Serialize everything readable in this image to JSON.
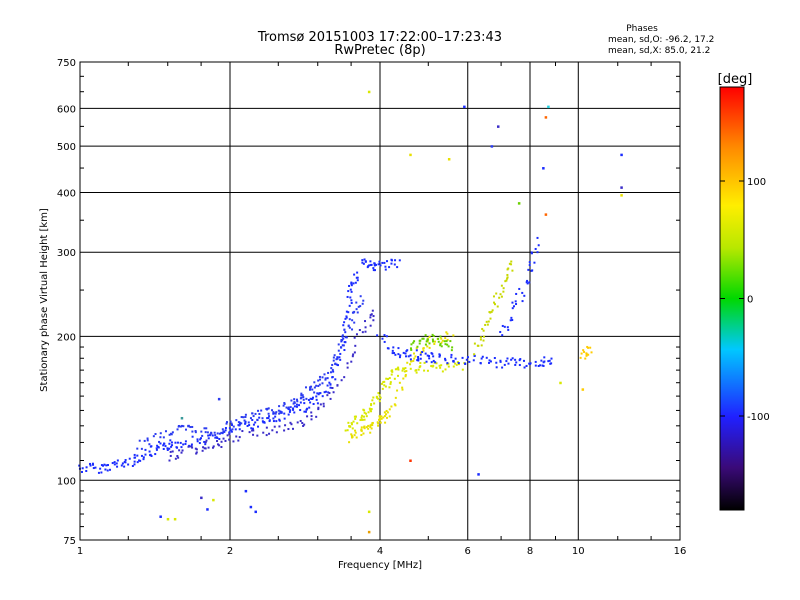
{
  "chart_data": {
    "type": "scatter",
    "title": "Tromsø 20151003 17:22:00–17:23:43",
    "subtitle": "RwPretec (8p)",
    "stats": {
      "header": "Phases",
      "line1": "mean, sd,O:  -96.2, 17.2",
      "line2": "mean, sd,X:   85.0, 21.2"
    },
    "xlabel": "Frequency [MHz]",
    "ylabel": "Stationary phase Virtual Height [km]",
    "x_scale": "log",
    "y_scale": "log",
    "xlim": [
      1,
      16
    ],
    "ylim": [
      75,
      750
    ],
    "x_ticks": [
      1,
      2,
      4,
      6,
      8,
      10,
      16
    ],
    "x_tick_labels": [
      "1",
      "2",
      "4",
      "6",
      "8",
      "10",
      "16"
    ],
    "y_ticks": [
      75,
      100,
      200,
      300,
      400,
      500,
      600,
      750
    ],
    "y_tick_labels": [
      "75",
      "100",
      "200",
      "300",
      "400",
      "500",
      "600",
      "750"
    ],
    "grid": true,
    "colorbar": {
      "label": "[deg]",
      "range": [
        -180,
        180
      ],
      "ticks": [
        100,
        0,
        -100
      ],
      "tick_labels": [
        "100",
        "0",
        "-100"
      ]
    },
    "series": [
      {
        "traces": [
          {
            "color": "#1a2cff",
            "phase": -100,
            "points": [
              [
                1.0,
                106
              ],
              [
                1.05,
                106
              ],
              [
                1.1,
                106
              ],
              [
                1.15,
                107
              ],
              [
                1.2,
                108
              ],
              [
                1.25,
                109
              ],
              [
                1.3,
                111
              ],
              [
                1.35,
                113
              ],
              [
                1.4,
                115
              ],
              [
                1.45,
                116
              ],
              [
                1.5,
                118
              ],
              [
                1.55,
                119
              ],
              [
                1.6,
                120
              ],
              [
                1.7,
                121
              ],
              [
                1.8,
                122
              ],
              [
                1.9,
                124
              ],
              [
                2.0,
                127
              ],
              [
                2.1,
                129
              ],
              [
                2.2,
                131
              ],
              [
                2.3,
                133
              ],
              [
                2.4,
                134
              ],
              [
                2.5,
                136
              ],
              [
                2.6,
                138
              ],
              [
                2.7,
                140
              ],
              [
                2.8,
                142
              ],
              [
                2.9,
                145
              ],
              [
                3.0,
                148
              ],
              [
                3.1,
                153
              ],
              [
                3.2,
                160
              ],
              [
                3.3,
                175
              ],
              [
                3.35,
                190
              ],
              [
                3.4,
                205
              ],
              [
                3.45,
                225
              ],
              [
                3.5,
                245
              ],
              [
                3.55,
                260
              ],
              [
                3.6,
                270
              ]
            ]
          },
          {
            "color": "#2c3cf0",
            "phase": -95,
            "points": [
              [
                1.3,
                118
              ],
              [
                1.4,
                122
              ],
              [
                1.5,
                126
              ],
              [
                1.6,
                128
              ],
              [
                1.7,
                127
              ],
              [
                1.8,
                126
              ],
              [
                1.9,
                127
              ],
              [
                2.0,
                130
              ],
              [
                2.1,
                133
              ],
              [
                2.2,
                135
              ],
              [
                2.3,
                137
              ],
              [
                2.4,
                139
              ],
              [
                2.5,
                141
              ],
              [
                2.6,
                143
              ],
              [
                2.7,
                146
              ],
              [
                2.8,
                150
              ],
              [
                2.9,
                154
              ],
              [
                3.0,
                158
              ],
              [
                3.1,
                164
              ],
              [
                3.2,
                172
              ],
              [
                3.3,
                185
              ],
              [
                3.4,
                200
              ],
              [
                3.5,
                215
              ],
              [
                3.6,
                230
              ],
              [
                3.7,
                245
              ]
            ]
          },
          {
            "color": "#3a2cc8",
            "phase": -110,
            "points": [
              [
                1.5,
                112
              ],
              [
                1.6,
                114
              ],
              [
                1.7,
                116
              ],
              [
                1.8,
                118
              ],
              [
                1.9,
                120
              ],
              [
                2.0,
                122
              ],
              [
                2.2,
                125
              ],
              [
                2.4,
                127
              ],
              [
                2.6,
                129
              ],
              [
                2.8,
                132
              ],
              [
                3.0,
                138
              ],
              [
                3.2,
                150
              ],
              [
                3.4,
                170
              ],
              [
                3.6,
                195
              ],
              [
                3.8,
                215
              ],
              [
                3.9,
                225
              ]
            ]
          },
          {
            "color": "#d8e800",
            "phase": 90,
            "points": [
              [
                3.4,
                128
              ],
              [
                3.5,
                131
              ],
              [
                3.6,
                134
              ],
              [
                3.7,
                137
              ],
              [
                3.8,
                140
              ],
              [
                3.9,
                144
              ],
              [
                4.0,
                150
              ],
              [
                4.1,
                158
              ],
              [
                4.2,
                165
              ],
              [
                4.3,
                168
              ],
              [
                4.5,
                170
              ],
              [
                4.8,
                172
              ],
              [
                5.0,
                172
              ],
              [
                5.3,
                172
              ],
              [
                5.6,
                173
              ],
              [
                5.9,
                175
              ]
            ]
          },
          {
            "color": "#e8e000",
            "phase": 95,
            "points": [
              [
                3.5,
                123
              ],
              [
                3.6,
                125
              ],
              [
                3.7,
                127
              ],
              [
                3.8,
                129
              ],
              [
                3.9,
                131
              ],
              [
                4.0,
                133
              ],
              [
                4.1,
                136
              ],
              [
                4.2,
                140
              ],
              [
                4.4,
                155
              ],
              [
                4.6,
                175
              ],
              [
                4.8,
                185
              ],
              [
                5.0,
                195
              ],
              [
                5.3,
                198
              ],
              [
                5.6,
                200
              ]
            ]
          },
          {
            "color": "#6ad000",
            "phase": 40,
            "points": [
              [
                4.6,
                190
              ],
              [
                4.8,
                195
              ],
              [
                5.0,
                198
              ],
              [
                5.2,
                196
              ],
              [
                5.4,
                192
              ],
              [
                5.6,
                190
              ]
            ]
          },
          {
            "color": "#1a2cff",
            "phase": -100,
            "points": [
              [
                4.0,
                200
              ],
              [
                4.2,
                190
              ],
              [
                4.4,
                185
              ],
              [
                4.6,
                183
              ],
              [
                4.8,
                182
              ],
              [
                5.0,
                181
              ],
              [
                5.2,
                180
              ],
              [
                5.5,
                179
              ],
              [
                5.8,
                179
              ],
              [
                6.2,
                178
              ],
              [
                6.6,
                177
              ],
              [
                7.0,
                176
              ],
              [
                7.4,
                176
              ],
              [
                7.8,
                176
              ],
              [
                8.2,
                176
              ],
              [
                8.6,
                177
              ],
              [
                9.0,
                178
              ]
            ]
          },
          {
            "color": "#1a2cff",
            "phase": -100,
            "points": [
              [
                3.7,
                285
              ],
              [
                3.8,
                282
              ],
              [
                3.9,
                281
              ],
              [
                4.0,
                280
              ],
              [
                4.2,
                282
              ],
              [
                4.4,
                285
              ]
            ]
          },
          {
            "color": "#c8d800",
            "phase": 80,
            "points": [
              [
                6.2,
                185
              ],
              [
                6.4,
                200
              ],
              [
                6.6,
                215
              ],
              [
                6.8,
                235
              ],
              [
                7.0,
                250
              ],
              [
                7.2,
                270
              ],
              [
                7.4,
                290
              ]
            ]
          },
          {
            "color": "#1a2cff",
            "phase": -100,
            "points": [
              [
                7.0,
                200
              ],
              [
                7.3,
                220
              ],
              [
                7.6,
                240
              ],
              [
                7.9,
                260
              ],
              [
                8.1,
                290
              ],
              [
                8.3,
                320
              ]
            ]
          },
          {
            "color": "#ffcc00",
            "phase": 120,
            "points": [
              [
                10.2,
                183
              ],
              [
                10.4,
                185
              ],
              [
                10.6,
                186
              ]
            ]
          }
        ],
        "scatter": [
          {
            "x": 1.45,
            "y": 84,
            "color": "#1a2cff"
          },
          {
            "x": 1.5,
            "y": 83,
            "color": "#d8e800"
          },
          {
            "x": 1.55,
            "y": 83,
            "color": "#d8e800"
          },
          {
            "x": 1.75,
            "y": 92,
            "color": "#3a2cc8"
          },
          {
            "x": 1.8,
            "y": 87,
            "color": "#1a2cff"
          },
          {
            "x": 1.85,
            "y": 91,
            "color": "#d8e800"
          },
          {
            "x": 2.2,
            "y": 88,
            "color": "#1a2cff"
          },
          {
            "x": 2.25,
            "y": 86,
            "color": "#1a2cff"
          },
          {
            "x": 2.15,
            "y": 95,
            "color": "#1a2cff"
          },
          {
            "x": 1.6,
            "y": 135,
            "color": "#3a9a9a"
          },
          {
            "x": 1.65,
            "y": 130,
            "color": "#2c3cf0"
          },
          {
            "x": 1.9,
            "y": 148,
            "color": "#2c3cf0"
          },
          {
            "x": 3.8,
            "y": 650,
            "color": "#d8e800"
          },
          {
            "x": 4.6,
            "y": 480,
            "color": "#e8e000"
          },
          {
            "x": 5.5,
            "y": 470,
            "color": "#e8e000"
          },
          {
            "x": 5.9,
            "y": 605,
            "color": "#1a2cff"
          },
          {
            "x": 6.9,
            "y": 550,
            "color": "#3a2cc8"
          },
          {
            "x": 6.7,
            "y": 500,
            "color": "#2c3cf0"
          },
          {
            "x": 7.6,
            "y": 380,
            "color": "#6ad000"
          },
          {
            "x": 8.6,
            "y": 575,
            "color": "#ff6600"
          },
          {
            "x": 8.7,
            "y": 605,
            "color": "#20d0e0"
          },
          {
            "x": 8.5,
            "y": 450,
            "color": "#1a2cff"
          },
          {
            "x": 8.6,
            "y": 360,
            "color": "#ff6600"
          },
          {
            "x": 12.2,
            "y": 480,
            "color": "#1a2cff"
          },
          {
            "x": 12.2,
            "y": 410,
            "color": "#3a2cc8"
          },
          {
            "x": 12.2,
            "y": 395,
            "color": "#e8e000"
          },
          {
            "x": 4.6,
            "y": 110,
            "color": "#ff3300"
          },
          {
            "x": 6.3,
            "y": 103,
            "color": "#1a2cff"
          },
          {
            "x": 3.8,
            "y": 86,
            "color": "#d8e800"
          },
          {
            "x": 3.8,
            "y": 78,
            "color": "#e8a000"
          },
          {
            "x": 10.2,
            "y": 155,
            "color": "#ffcc00"
          },
          {
            "x": 9.2,
            "y": 160,
            "color": "#d8e800"
          }
        ]
      }
    ]
  }
}
